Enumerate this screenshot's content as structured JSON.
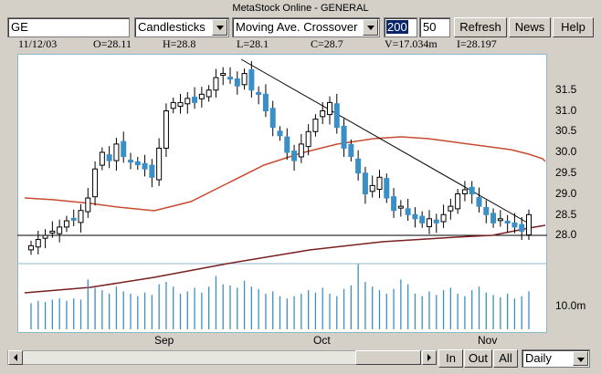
{
  "window": {
    "title": "MetaStock Online - GENERAL"
  },
  "toolbar": {
    "symbol": "GE",
    "chart_style": "Candlesticks",
    "indicator": "Moving Ave. Crossover",
    "period_fast": "200",
    "period_slow": "50",
    "refresh_label": "Refresh",
    "news_label": "News",
    "help_label": "Help"
  },
  "stats": {
    "date": "11/12/03",
    "open": "O=28.11",
    "high": "H=28.8",
    "low": "L=28.1",
    "close": "C=28.7",
    "volume": "V=17.034m",
    "indicator_value": "I=28.197"
  },
  "chart_data": {
    "type": "candlestick",
    "price_axis_ticks": [
      "31.5",
      "31.0",
      "30.5",
      "30.0",
      "29.5",
      "29.0",
      "28.5",
      "28.0"
    ],
    "volume_axis_tick": "10.0m",
    "x_axis_labels": [
      "Sep",
      "Oct",
      "Nov"
    ],
    "ylim": [
      27.25,
      32.05
    ]
  },
  "bottom": {
    "in_label": "In",
    "out_label": "Out",
    "all_label": "All",
    "interval": "Daily"
  },
  "colors": {
    "up": "#ffffff",
    "down": "#3a8fc7",
    "ma_fast": "#c84b2f",
    "ma_slow": "#7a1f1f",
    "trend": "#000000"
  }
}
